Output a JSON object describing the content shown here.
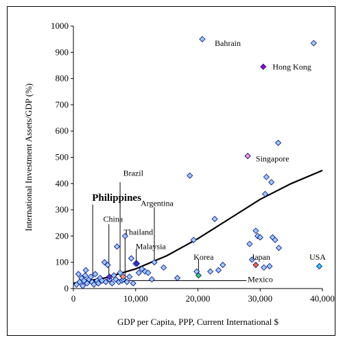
{
  "chart_data": {
    "type": "scatter",
    "title": "",
    "xlabel": "GDP per Capita, PPP, Current International $",
    "ylabel": "International Investment Assets/GDP (%)",
    "xlim": [
      0,
      40000
    ],
    "ylim": [
      0,
      1000
    ],
    "x_ticks": [
      0,
      10000,
      20000,
      30000,
      40000
    ],
    "x_tick_labels": [
      "0",
      "10,000",
      "20,000",
      "30,000",
      "40,000"
    ],
    "y_ticks": [
      0,
      100,
      200,
      300,
      400,
      500,
      600,
      700,
      800,
      900,
      1000
    ],
    "y_tick_labels": [
      "0",
      "100",
      "200",
      "300",
      "400",
      "500",
      "600",
      "700",
      "800",
      "900",
      "1000"
    ],
    "grid": false,
    "legend": "none",
    "colors": {
      "point_fill": "#99ccff",
      "point_stroke": "#000080",
      "trend": "#000000",
      "hong_kong": "#9900cc",
      "singapore": "#ff99cc",
      "korea": "#33cc66",
      "japan": "#ff6633",
      "usa": "#33ccff",
      "malaysia": "#3333cc",
      "philippines": "#6633cc",
      "brazil": "#ff9966"
    },
    "points": [
      {
        "x": 500,
        "y": 15
      },
      {
        "x": 800,
        "y": 55
      },
      {
        "x": 1000,
        "y": 25
      },
      {
        "x": 1300,
        "y": 40
      },
      {
        "x": 1500,
        "y": 10
      },
      {
        "x": 1700,
        "y": 30
      },
      {
        "x": 1900,
        "y": 50
      },
      {
        "x": 2000,
        "y": 70
      },
      {
        "x": 2200,
        "y": 20
      },
      {
        "x": 2500,
        "y": 35
      },
      {
        "x": 2800,
        "y": 45
      },
      {
        "x": 3000,
        "y": 25
      },
      {
        "x": 3300,
        "y": 15
      },
      {
        "x": 3500,
        "y": 55
      },
      {
        "x": 3800,
        "y": 30
      },
      {
        "x": 4000,
        "y": 20
      },
      {
        "x": 4300,
        "y": 40
      },
      {
        "x": 4600,
        "y": 30
      },
      {
        "x": 5000,
        "y": 100
      },
      {
        "x": 5200,
        "y": 25
      },
      {
        "x": 5500,
        "y": 90
      },
      {
        "x": 5800,
        "y": 35
      },
      {
        "x": 6200,
        "y": 20
      },
      {
        "x": 6500,
        "y": 50
      },
      {
        "x": 6800,
        "y": 35
      },
      {
        "x": 7000,
        "y": 160
      },
      {
        "x": 7300,
        "y": 25
      },
      {
        "x": 7500,
        "y": 60
      },
      {
        "x": 7800,
        "y": 30
      },
      {
        "x": 8000,
        "y": 35
      },
      {
        "x": 8300,
        "y": 200
      },
      {
        "x": 8600,
        "y": 25
      },
      {
        "x": 9000,
        "y": 45
      },
      {
        "x": 9300,
        "y": 115
      },
      {
        "x": 9600,
        "y": 20
      },
      {
        "x": 10000,
        "y": 95
      },
      {
        "x": 10500,
        "y": 60
      },
      {
        "x": 11000,
        "y": 75
      },
      {
        "x": 11500,
        "y": 65
      },
      {
        "x": 12000,
        "y": 60
      },
      {
        "x": 12600,
        "y": 35
      },
      {
        "x": 13000,
        "y": 100
      },
      {
        "x": 14500,
        "y": 80
      },
      {
        "x": 16700,
        "y": 40
      },
      {
        "x": 18700,
        "y": 430
      },
      {
        "x": 19300,
        "y": 185
      },
      {
        "x": 19800,
        "y": 65
      },
      {
        "x": 20700,
        "y": 950
      },
      {
        "x": 22000,
        "y": 65
      },
      {
        "x": 22700,
        "y": 265
      },
      {
        "x": 23300,
        "y": 70
      },
      {
        "x": 24000,
        "y": 90
      },
      {
        "x": 28000,
        "y": 505
      },
      {
        "x": 28300,
        "y": 170
      },
      {
        "x": 28700,
        "y": 110
      },
      {
        "x": 29300,
        "y": 220
      },
      {
        "x": 29600,
        "y": 200
      },
      {
        "x": 30000,
        "y": 195
      },
      {
        "x": 30600,
        "y": 80
      },
      {
        "x": 30800,
        "y": 360
      },
      {
        "x": 31000,
        "y": 425
      },
      {
        "x": 31500,
        "y": 85
      },
      {
        "x": 31800,
        "y": 405
      },
      {
        "x": 32000,
        "y": 195
      },
      {
        "x": 32400,
        "y": 185
      },
      {
        "x": 32900,
        "y": 555
      },
      {
        "x": 33000,
        "y": 155
      },
      {
        "x": 38600,
        "y": 935
      }
    ],
    "highlighted": [
      {
        "label": "Hong Kong",
        "x": 30500,
        "y": 845,
        "color_key": "hong_kong"
      },
      {
        "label": "Singapore",
        "x": 28000,
        "y": 505,
        "color_key": "singapore"
      },
      {
        "label": "Korea",
        "x": 20100,
        "y": 50,
        "color_key": "korea"
      },
      {
        "label": "Japan",
        "x": 29300,
        "y": 90,
        "color_key": "japan"
      },
      {
        "label": "USA",
        "x": 39500,
        "y": 85,
        "color_key": "usa"
      },
      {
        "label": "Malaysia",
        "x": 10200,
        "y": 95,
        "color_key": "malaysia"
      },
      {
        "label": "Philippines",
        "x": 5800,
        "y": 45,
        "color_key": "philippines"
      },
      {
        "label": "Brazil",
        "x": 8000,
        "y": 45,
        "color_key": "brazil"
      }
    ],
    "annotations": [
      {
        "label": "Bahrain",
        "text_x": 22700,
        "text_y": 935,
        "line": null
      },
      {
        "label": "Hong Kong",
        "text_x": 32000,
        "text_y": 845,
        "line": null
      },
      {
        "label": "Singapore",
        "text_x": 29300,
        "text_y": 495,
        "line": null
      },
      {
        "label": "Brazil",
        "text_x": 8000,
        "text_y": 440,
        "line": [
          7500,
          405,
          7500,
          45
        ]
      },
      {
        "label": "Philippines",
        "text_x": 3000,
        "text_y": 345,
        "line": [
          3100,
          320,
          3100,
          40
        ],
        "bold": true
      },
      {
        "label": "Argentina",
        "text_x": 10800,
        "text_y": 325,
        "line": [
          13000,
          310,
          13000,
          100
        ]
      },
      {
        "label": "China",
        "text_x": 4800,
        "text_y": 265,
        "line": [
          5700,
          245,
          5700,
          45
        ]
      },
      {
        "label": "Thailand",
        "text_x": 8100,
        "text_y": 215,
        "line": [
          8300,
          205,
          8300,
          35
        ]
      },
      {
        "label": "Malaysia",
        "text_x": 10000,
        "text_y": 160,
        "line": [
          10100,
          150,
          10100,
          95
        ]
      },
      {
        "label": "Korea",
        "text_x": 19300,
        "text_y": 120,
        "line": [
          20100,
          110,
          20100,
          55
        ]
      },
      {
        "label": "Japan",
        "text_x": 28600,
        "text_y": 120,
        "line": null
      },
      {
        "label": "USA",
        "text_x": 37900,
        "text_y": 120,
        "line": null
      },
      {
        "label": "Mexico",
        "text_x": 28000,
        "text_y": 35,
        "line": [
          7300,
          30,
          27800,
          30
        ]
      }
    ],
    "trend_line": [
      [
        0,
        20
      ],
      [
        5000,
        40
      ],
      [
        10000,
        75
      ],
      [
        15000,
        125
      ],
      [
        20000,
        190
      ],
      [
        25000,
        265
      ],
      [
        30000,
        340
      ],
      [
        35000,
        400
      ],
      [
        40000,
        450
      ]
    ]
  }
}
